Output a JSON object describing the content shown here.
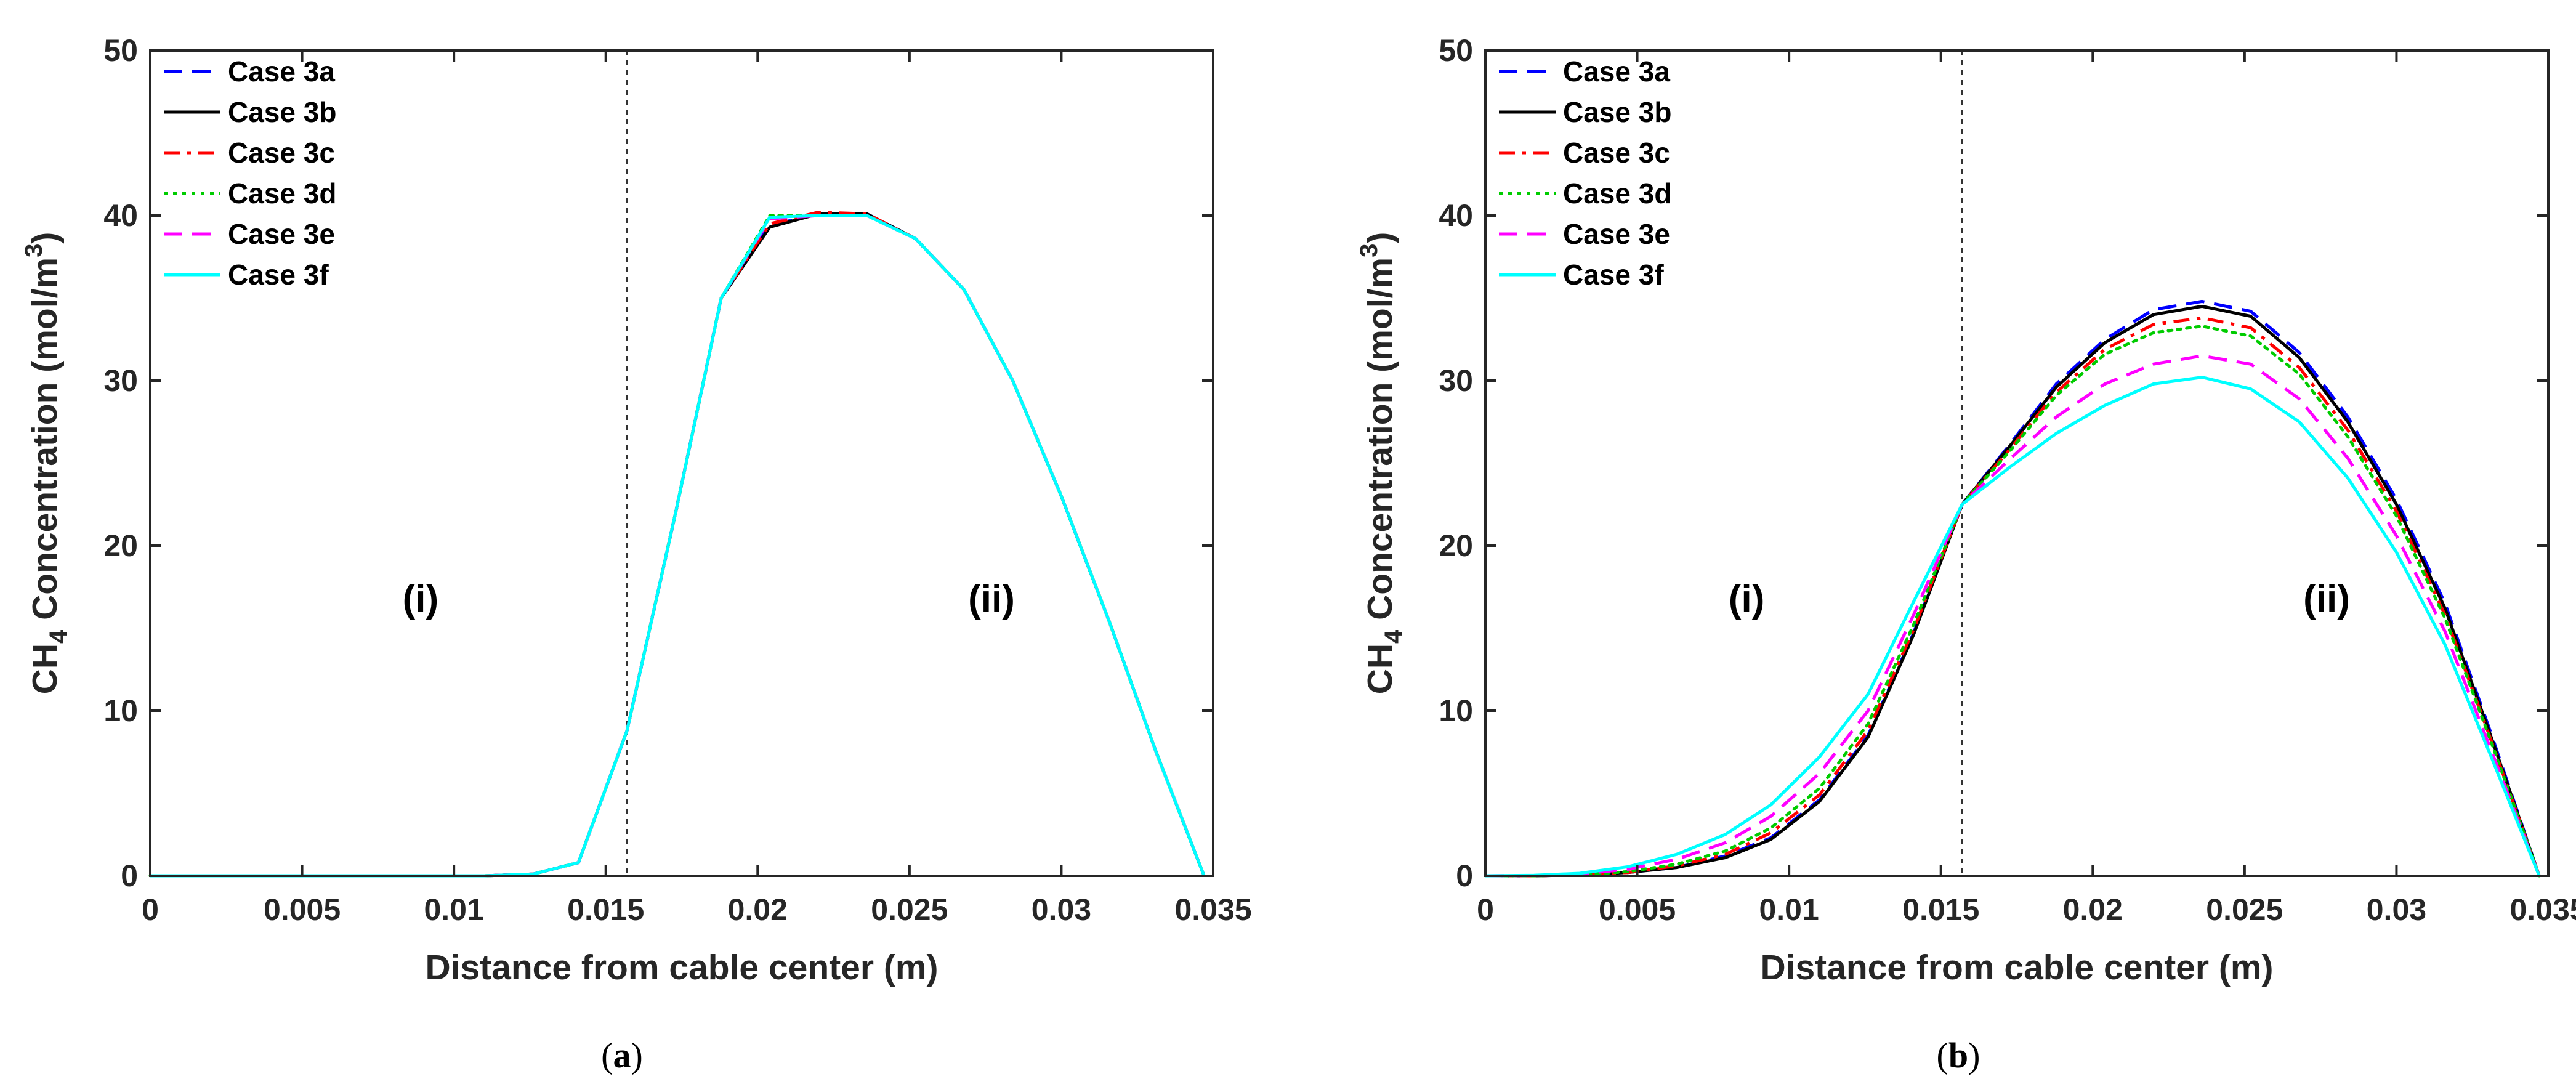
{
  "colors": {
    "case_3a": "#0000ff",
    "case_3b": "#000000",
    "case_3c": "#ff0000",
    "case_3d": "#00cc00",
    "case_3e": "#ff00ff",
    "case_3f": "#00ffff",
    "axis": "#262626",
    "divider": "#333333"
  },
  "chart_data": [
    {
      "type": "line",
      "caption": {
        "open": "(",
        "letter": "a",
        "close": ")"
      },
      "xlabel": "Distance from cable center (m)",
      "ylabel": {
        "main": "CH",
        "sub": "4",
        "rest": " Concentration (mol/m",
        "sup": "3",
        "close": ")"
      },
      "xlim": [
        0,
        0.035
      ],
      "ylim": [
        0,
        50
      ],
      "xticks": [
        0,
        0.005,
        0.01,
        0.015,
        0.02,
        0.025,
        0.03,
        0.035
      ],
      "xtick_labels": [
        "0",
        "0.005",
        "0.01",
        "0.015",
        "0.02",
        "0.025",
        "0.03",
        "0.035"
      ],
      "yticks": [
        0,
        10,
        20,
        30,
        40,
        50
      ],
      "ytick_labels": [
        "0",
        "10",
        "20",
        "30",
        "40",
        "50"
      ],
      "divider_x": 0.0157,
      "regions": [
        {
          "label": "(i)",
          "x": 0.0089,
          "y": 16
        },
        {
          "label": "(ii)",
          "x": 0.0277,
          "y": 16
        }
      ],
      "legend": [
        "Case 3a",
        "Case 3b",
        "Case 3c",
        "Case 3d",
        "Case 3e",
        "Case 3f"
      ],
      "legend_position": "top-left",
      "x": [
        0,
        0.0016,
        0.0031,
        0.0047,
        0.0063,
        0.0079,
        0.0094,
        0.011,
        0.0126,
        0.0141,
        0.0157,
        0.0173,
        0.0188,
        0.0204,
        0.022,
        0.0236,
        0.0252,
        0.0268,
        0.0284,
        0.03,
        0.0316,
        0.0331,
        0.0347
      ],
      "series": [
        {
          "name": "Case 3a",
          "color_key": "case_3a",
          "dash": "dashed",
          "values": [
            0,
            0,
            0,
            0,
            0,
            0,
            0,
            0,
            0.1,
            0.8,
            8.8,
            22,
            35,
            39.4,
            40.1,
            40.1,
            38.6,
            35.5,
            30,
            23,
            15.3,
            7.6,
            0
          ]
        },
        {
          "name": "Case 3b",
          "color_key": "case_3b",
          "dash": "solid",
          "values": [
            0,
            0,
            0,
            0,
            0,
            0,
            0,
            0,
            0.1,
            0.8,
            8.8,
            22,
            35,
            39.3,
            40.1,
            40.1,
            38.6,
            35.5,
            30,
            23,
            15.3,
            7.6,
            0
          ]
        },
        {
          "name": "Case 3c",
          "color_key": "case_3c",
          "dash": "dashdot",
          "values": [
            0,
            0,
            0,
            0,
            0,
            0,
            0,
            0,
            0.1,
            0.8,
            8.8,
            22,
            35,
            39.5,
            40.2,
            40.1,
            38.6,
            35.5,
            30,
            23,
            15.3,
            7.6,
            0
          ]
        },
        {
          "name": "Case 3d",
          "color_key": "case_3d",
          "dash": "dotted",
          "values": [
            0,
            0,
            0,
            0,
            0,
            0,
            0,
            0,
            0.1,
            0.8,
            8.8,
            22,
            35,
            40,
            40,
            40,
            38.6,
            35.5,
            30,
            23,
            15.3,
            7.6,
            0
          ]
        },
        {
          "name": "Case 3e",
          "color_key": "case_3e",
          "dash": "dashed",
          "values": [
            0,
            0,
            0,
            0,
            0,
            0,
            0,
            0,
            0.1,
            0.8,
            8.8,
            22,
            35,
            39.8,
            40,
            40,
            38.6,
            35.5,
            30,
            23,
            15.3,
            7.6,
            0
          ]
        },
        {
          "name": "Case 3f",
          "color_key": "case_3f",
          "dash": "solid",
          "values": [
            0,
            0,
            0,
            0,
            0,
            0,
            0,
            0,
            0.1,
            0.8,
            8.8,
            22,
            35,
            39.9,
            40,
            40,
            38.6,
            35.5,
            30,
            23,
            15.3,
            7.6,
            0
          ]
        }
      ]
    },
    {
      "type": "line",
      "caption": {
        "open": "(",
        "letter": "b",
        "close": ")"
      },
      "xlabel": "Distance from cable center (m)",
      "ylabel": {
        "main": "CH",
        "sub": "4",
        "rest": " Concentration (mol/m",
        "sup": "3",
        "close": ")"
      },
      "xlim": [
        0,
        0.035
      ],
      "ylim": [
        0,
        50
      ],
      "xticks": [
        0,
        0.005,
        0.01,
        0.015,
        0.02,
        0.025,
        0.03,
        0.035
      ],
      "xtick_labels": [
        "0",
        "0.005",
        "0.01",
        "0.015",
        "0.02",
        "0.025",
        "0.03",
        "0.035"
      ],
      "yticks": [
        0,
        10,
        20,
        30,
        40,
        50
      ],
      "ytick_labels": [
        "0",
        "10",
        "20",
        "30",
        "40",
        "50"
      ],
      "divider_x": 0.0157,
      "regions": [
        {
          "label": "(i)",
          "x": 0.0086,
          "y": 16
        },
        {
          "label": "(ii)",
          "x": 0.0277,
          "y": 16
        }
      ],
      "legend": [
        "Case 3a",
        "Case 3b",
        "Case 3c",
        "Case 3d",
        "Case 3e",
        "Case 3f"
      ],
      "legend_position": "top-left",
      "x": [
        0,
        0.0016,
        0.0031,
        0.0047,
        0.0063,
        0.0079,
        0.0094,
        0.011,
        0.0126,
        0.0141,
        0.0157,
        0.0173,
        0.0188,
        0.0204,
        0.022,
        0.0236,
        0.0252,
        0.0268,
        0.0284,
        0.03,
        0.0316,
        0.0331,
        0.0347
      ],
      "series": [
        {
          "name": "Case 3a",
          "color_key": "case_3a",
          "dash": "dashed",
          "values": [
            0,
            0,
            0.05,
            0.2,
            0.5,
            1.2,
            2.3,
            4.6,
            8.5,
            14.7,
            22.5,
            26.2,
            29.8,
            32.5,
            34.3,
            34.8,
            34.2,
            31.7,
            27.8,
            22.8,
            16.5,
            8.7,
            0
          ]
        },
        {
          "name": "Case 3b",
          "color_key": "case_3b",
          "dash": "solid",
          "values": [
            0,
            0,
            0.05,
            0.2,
            0.5,
            1.1,
            2.2,
            4.5,
            8.4,
            14.6,
            22.5,
            26.1,
            29.6,
            32.3,
            34,
            34.5,
            33.9,
            31.4,
            27.5,
            22.5,
            16.2,
            8.5,
            0
          ]
        },
        {
          "name": "Case 3c",
          "color_key": "case_3c",
          "dash": "dashdot",
          "values": [
            0,
            0,
            0.05,
            0.2,
            0.6,
            1.3,
            2.6,
            4.9,
            8.8,
            14.9,
            22.5,
            25.9,
            29.3,
            31.9,
            33.4,
            33.8,
            33.2,
            30.8,
            27,
            22.1,
            15.8,
            8.3,
            0
          ]
        },
        {
          "name": "Case 3d",
          "color_key": "case_3d",
          "dash": "dotted",
          "values": [
            0,
            0,
            0.05,
            0.25,
            0.7,
            1.5,
            2.9,
            5.3,
            9.2,
            15.2,
            22.5,
            25.8,
            29.1,
            31.6,
            32.9,
            33.3,
            32.7,
            30.4,
            26.6,
            21.8,
            15.6,
            8.2,
            0
          ]
        },
        {
          "name": "Case 3e",
          "color_key": "case_3e",
          "dash": "dashed",
          "values": [
            0,
            0.02,
            0.1,
            0.4,
            1,
            2,
            3.6,
            6.2,
            10,
            15.8,
            22.5,
            25.3,
            27.8,
            29.8,
            31,
            31.5,
            31,
            28.9,
            25.3,
            20.6,
            14.8,
            7.7,
            0
          ]
        },
        {
          "name": "Case 3f",
          "color_key": "case_3f",
          "dash": "solid",
          "values": [
            0,
            0.03,
            0.15,
            0.55,
            1.3,
            2.5,
            4.3,
            7.2,
            11,
            16.6,
            22.5,
            24.8,
            26.8,
            28.5,
            29.8,
            30.2,
            29.5,
            27.5,
            24.1,
            19.6,
            14,
            7.3,
            0
          ]
        }
      ]
    }
  ]
}
